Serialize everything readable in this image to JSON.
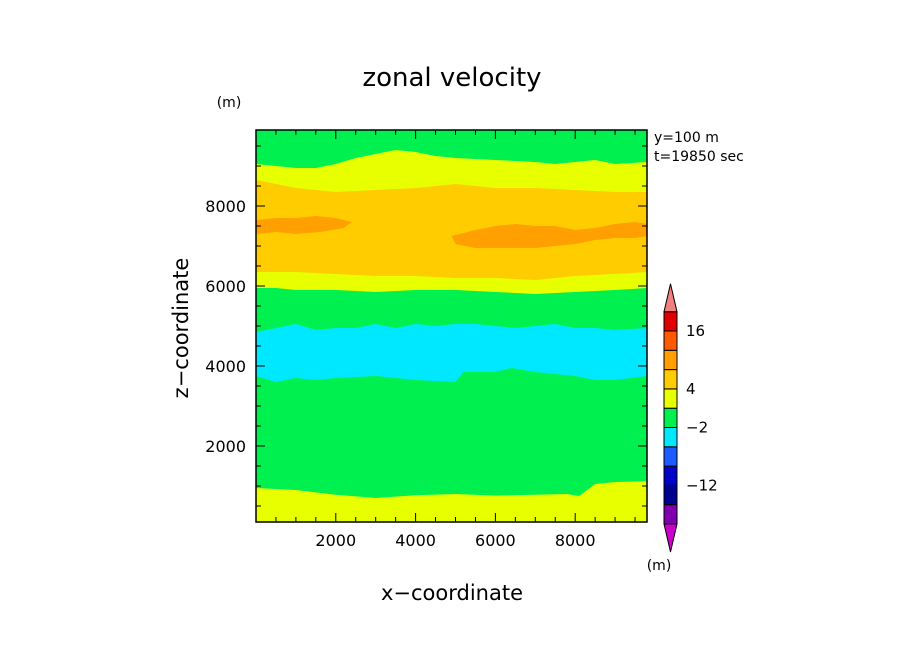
{
  "chart_data": {
    "type": "heatmap",
    "title": "zonal velocity",
    "xlabel": "x−coordinate",
    "ylabel": "z−coordinate",
    "x_unit": "(m)",
    "y_unit": "(m)",
    "annotations": [
      "y=100 m",
      "t=19850 sec"
    ],
    "xlim": [
      0,
      9800
    ],
    "ylim": [
      100,
      9900
    ],
    "xticks": [
      2000,
      4000,
      6000,
      8000
    ],
    "yticks": [
      2000,
      4000,
      6000,
      8000
    ],
    "xtick_labels": [
      "2000",
      "4000",
      "6000",
      "8000"
    ],
    "ytick_labels": [
      "2000",
      "4000",
      "6000",
      "8000"
    ],
    "colorbar": {
      "colors": [
        "#cc00cc",
        "#8000b0",
        "#000090",
        "#0000c8",
        "#1a5cff",
        "#00e8ff",
        "#00f050",
        "#e8ff00",
        "#ffcc00",
        "#ffa000",
        "#ff5a00",
        "#e00000",
        "#f08080"
      ],
      "tick_labels": [
        "16",
        "4",
        "−2",
        "−12"
      ],
      "tick_band_index": [
        10.5,
        7.5,
        5.5,
        2.5
      ],
      "unit": "(m)"
    },
    "layers": [
      {
        "color": "#e8ff00",
        "top": [
          [
            0,
            950
          ],
          [
            1000,
            900
          ],
          [
            2000,
            780
          ],
          [
            3000,
            700
          ],
          [
            4000,
            770
          ],
          [
            5000,
            800
          ],
          [
            6000,
            760
          ],
          [
            7000,
            780
          ],
          [
            7800,
            800
          ],
          [
            8100,
            750
          ],
          [
            8500,
            1050
          ],
          [
            9000,
            1100
          ],
          [
            9800,
            1120
          ]
        ]
      },
      {
        "color": "#00f050",
        "top": [
          [
            0,
            3750
          ],
          [
            500,
            3600
          ],
          [
            1000,
            3700
          ],
          [
            1500,
            3650
          ],
          [
            2000,
            3700
          ],
          [
            3000,
            3750
          ],
          [
            4000,
            3650
          ],
          [
            5000,
            3600
          ],
          [
            5200,
            3850
          ],
          [
            6000,
            3850
          ],
          [
            6400,
            3950
          ],
          [
            7000,
            3850
          ],
          [
            8000,
            3750
          ],
          [
            8500,
            3650
          ],
          [
            9000,
            3650
          ],
          [
            9800,
            3750
          ]
        ]
      },
      {
        "color": "#00e8ff",
        "top": [
          [
            0,
            4850
          ],
          [
            500,
            4950
          ],
          [
            1000,
            5050
          ],
          [
            1500,
            4900
          ],
          [
            2000,
            4950
          ],
          [
            2500,
            4950
          ],
          [
            3000,
            5050
          ],
          [
            3500,
            4950
          ],
          [
            4000,
            5050
          ],
          [
            4500,
            5000
          ],
          [
            5000,
            5050
          ],
          [
            5500,
            5050
          ],
          [
            6000,
            5000
          ],
          [
            6500,
            4950
          ],
          [
            7000,
            5000
          ],
          [
            7500,
            5050
          ],
          [
            8000,
            4950
          ],
          [
            8500,
            4950
          ],
          [
            9000,
            4900
          ],
          [
            9800,
            4950
          ]
        ]
      },
      {
        "color": "#00f050",
        "top": [
          [
            0,
            5950
          ],
          [
            500,
            5950
          ],
          [
            1000,
            5900
          ],
          [
            2000,
            5900
          ],
          [
            3000,
            5850
          ],
          [
            4000,
            5900
          ],
          [
            5000,
            5900
          ],
          [
            6000,
            5850
          ],
          [
            7000,
            5800
          ],
          [
            8000,
            5850
          ],
          [
            9000,
            5900
          ],
          [
            9800,
            5950
          ]
        ]
      },
      {
        "color": "#e8ff00",
        "top": [
          [
            0,
            6350
          ],
          [
            500,
            6350
          ],
          [
            1000,
            6350
          ],
          [
            2000,
            6300
          ],
          [
            3000,
            6250
          ],
          [
            4000,
            6250
          ],
          [
            5000,
            6200
          ],
          [
            6000,
            6200
          ],
          [
            7000,
            6150
          ],
          [
            8000,
            6250
          ],
          [
            9000,
            6300
          ],
          [
            9800,
            6350
          ]
        ]
      },
      {
        "color": "#ffcc00",
        "top": [
          [
            0,
            8650
          ],
          [
            500,
            8550
          ],
          [
            1000,
            8450
          ],
          [
            2000,
            8350
          ],
          [
            3000,
            8400
          ],
          [
            4000,
            8450
          ],
          [
            5000,
            8550
          ],
          [
            6000,
            8450
          ],
          [
            7000,
            8450
          ],
          [
            8000,
            8400
          ],
          [
            9000,
            8350
          ],
          [
            9800,
            8350
          ]
        ]
      },
      {
        "color": "#e8ff00",
        "top": [
          [
            0,
            9050
          ],
          [
            500,
            9000
          ],
          [
            1000,
            8950
          ],
          [
            1500,
            8950
          ],
          [
            2000,
            9050
          ],
          [
            2500,
            9200
          ],
          [
            3000,
            9300
          ],
          [
            3500,
            9400
          ],
          [
            4000,
            9350
          ],
          [
            4500,
            9250
          ],
          [
            5000,
            9200
          ],
          [
            6000,
            9150
          ],
          [
            7000,
            9100
          ],
          [
            7500,
            9050
          ],
          [
            8000,
            9100
          ],
          [
            8500,
            9150
          ],
          [
            9000,
            9050
          ],
          [
            9800,
            9100
          ]
        ]
      },
      {
        "color": "#00f050",
        "top": [
          [
            0,
            9900
          ],
          [
            9800,
            9900
          ]
        ]
      }
    ],
    "patches": [
      {
        "color": "#ffa000",
        "points": [
          [
            0,
            7650
          ],
          [
            500,
            7700
          ],
          [
            1000,
            7700
          ],
          [
            1500,
            7750
          ],
          [
            2000,
            7700
          ],
          [
            2400,
            7600
          ],
          [
            2200,
            7450
          ],
          [
            1600,
            7350
          ],
          [
            1000,
            7300
          ],
          [
            500,
            7350
          ],
          [
            0,
            7300
          ]
        ]
      },
      {
        "color": "#ffa000",
        "points": [
          [
            4900,
            7250
          ],
          [
            5500,
            7400
          ],
          [
            6000,
            7500
          ],
          [
            6500,
            7550
          ],
          [
            7000,
            7500
          ],
          [
            7500,
            7500
          ],
          [
            8000,
            7400
          ],
          [
            8500,
            7450
          ],
          [
            9000,
            7550
          ],
          [
            9500,
            7600
          ],
          [
            9800,
            7550
          ],
          [
            9800,
            7250
          ],
          [
            9500,
            7200
          ],
          [
            9000,
            7200
          ],
          [
            8500,
            7150
          ],
          [
            8000,
            7050
          ],
          [
            7500,
            7000
          ],
          [
            7000,
            6950
          ],
          [
            6500,
            6950
          ],
          [
            6000,
            6950
          ],
          [
            5500,
            6950
          ],
          [
            5000,
            7050
          ]
        ]
      }
    ]
  }
}
